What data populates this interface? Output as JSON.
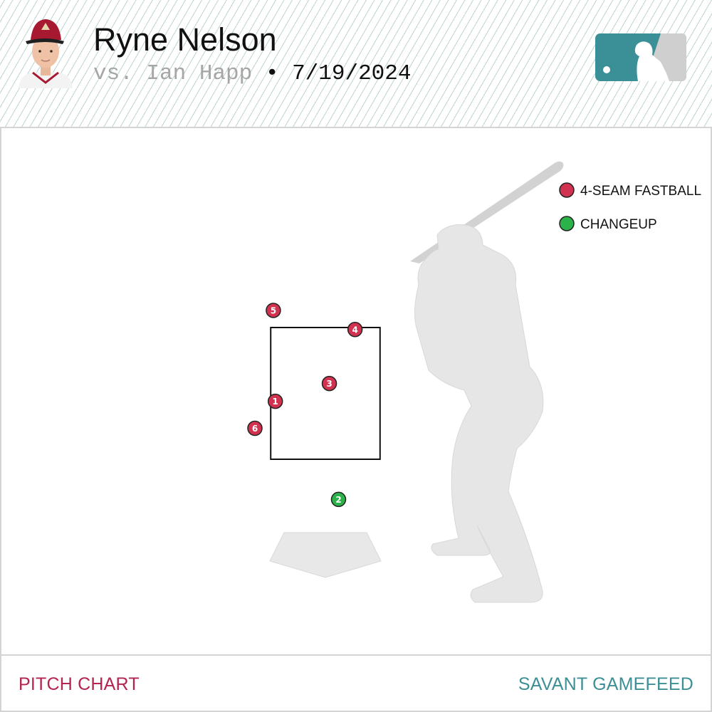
{
  "header": {
    "pitcher_name": "Ryne Nelson",
    "matchup_prefix": "vs. Ian Happ",
    "separator": " • ",
    "date": "7/19/2024"
  },
  "footer": {
    "left_label": "PITCH CHART",
    "right_label": "SAVANT GAMEFEED"
  },
  "colors": {
    "fastball": "#d0324f",
    "changeup": "#2bb34a",
    "footer_left": "#b5244f",
    "footer_right": "#3d8f96",
    "logo_teal": "#3b8f97",
    "cap_red": "#a71930"
  },
  "chart_data": {
    "type": "scatter",
    "title": "",
    "xlabel": "",
    "ylabel": "",
    "legend": {
      "placement": "top-right",
      "entries": [
        {
          "name": "4-SEAM FASTBALL",
          "color": "#d0324f"
        },
        {
          "name": "CHANGEUP",
          "color": "#2bb34a"
        }
      ]
    },
    "strike_zone": {
      "x_ft": [
        -0.83,
        0.83
      ],
      "z_ft": [
        1.5,
        3.5
      ]
    },
    "units": "plate_x / plate_z (ft), catcher view",
    "pitches": [
      {
        "label": "1",
        "type": "4-SEAM FASTBALL",
        "x": -0.76,
        "z": 2.38
      },
      {
        "label": "2",
        "type": "CHANGEUP",
        "x": 0.2,
        "z": 0.89
      },
      {
        "label": "3",
        "type": "4-SEAM FASTBALL",
        "x": 0.06,
        "z": 2.65
      },
      {
        "label": "4",
        "type": "4-SEAM FASTBALL",
        "x": 0.45,
        "z": 3.47
      },
      {
        "label": "5",
        "type": "4-SEAM FASTBALL",
        "x": -0.79,
        "z": 3.76
      },
      {
        "label": "6",
        "type": "4-SEAM FASTBALL",
        "x": -1.07,
        "z": 1.97
      }
    ]
  }
}
